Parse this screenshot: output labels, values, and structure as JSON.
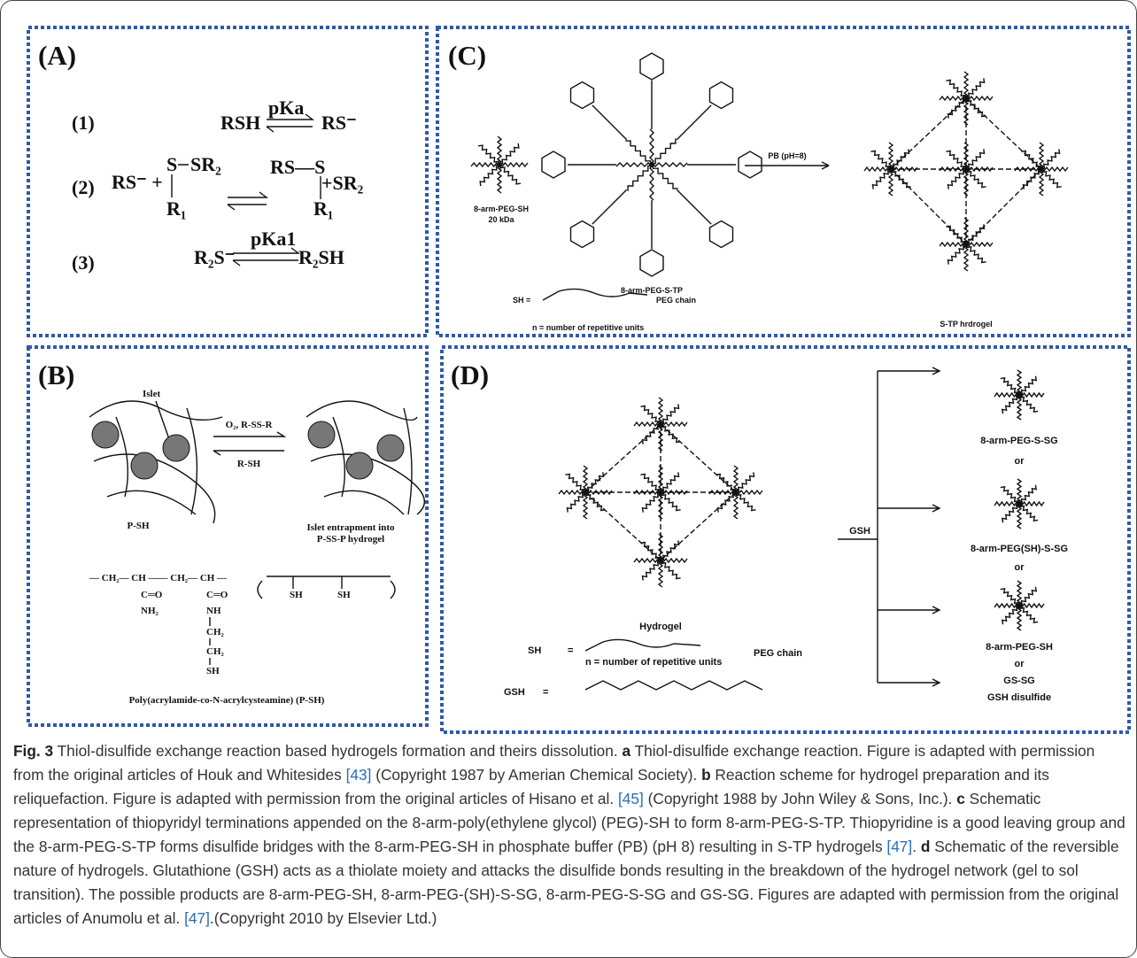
{
  "panel_a": {
    "label": "(A)",
    "r1": {
      "number": "(1)",
      "left": "RSH",
      "constant": "pKa",
      "right": "RS⁻"
    },
    "r2": {
      "number": "(2)",
      "left": "RS⁻ +",
      "s": "S",
      "sr2": "SR₂",
      "r1": "R₁",
      "product": "RS—S",
      "leaving": "+SR₂",
      "r1b": "R₁"
    },
    "r3": {
      "number": "(3)",
      "left": "R₂S⁻",
      "constant": "pKa1",
      "right": "R₂SH"
    }
  },
  "panel_b": {
    "label": "(B)",
    "islet": "Islet",
    "forward": "O₂, R-SS-R",
    "reverse": "R-SH",
    "left_name": "P-SH",
    "right_name": [
      "Islet entrapment into",
      "P-SS-P hydrogel"
    ],
    "backbone": "— CH₂— CH —— CH₂— CH —",
    "side_a": [
      "C═O",
      "NH₂"
    ],
    "side_b": [
      "C═O",
      "NH",
      "CH₂",
      "CH₂",
      "SH"
    ],
    "repeat_sh": [
      "SH",
      "SH"
    ],
    "polymer_name": "Poly(acrylamide-co-N-acrylcysteamine) (P-SH)"
  },
  "panel_c": {
    "label": "(C)",
    "peg_sh": "8-arm-PEG-SH",
    "mass": "20 kDa",
    "peg_stp": "8-arm-PEG-S-TP",
    "condition": "PB (pH=8)",
    "hydrogel": "S-TP hrdrogel",
    "legend_sh": "SH =",
    "legend_chain": "PEG chain",
    "legend_n": "n = number of repetitive units"
  },
  "panel_d": {
    "label": "(D)",
    "hydrogel": "Hydrogel",
    "legend_sh": "SH",
    "equals": "=",
    "legend_chain": "PEG chain",
    "legend_n": "n = number of repetitive units",
    "gsh": "GSH",
    "gsh_eq": "=",
    "reagent": "GSH",
    "products": [
      "8-arm-PEG-S-SG",
      "or",
      "8-arm-PEG(SH)-S-SG",
      "or",
      "8-arm-PEG-SH",
      "or",
      "GS-SG",
      "GSH disulfide"
    ]
  },
  "caption": [
    "Fig. 3",
    " Thiol-disulfide exchange reaction based hydrogels formation and theirs dissolution. ",
    "a",
    " Thiol-disulfide exchange reaction. Figure is adapted with permission from the original articles of Houk and Whitesides ",
    "[43]",
    " (Copyright 1987 by Amerian Chemical Society). ",
    "b",
    " Reaction scheme for hydrogel preparation and its reliquefaction. Figure is adapted with permission from the original articles of Hisano et al. ",
    "[45]",
    " (Copyright 1988 by John Wiley & Sons, Inc.). ",
    "c",
    " Schematic representation of thiopyridyl terminations appended on the 8-arm-poly(ethylene glycol) (PEG)-SH to form 8-arm-PEG-S-TP. Thiopyridine is a good leaving group and the 8-arm-PEG-S-TP forms disulfide bridges with the 8-arm-PEG-SH in phosphate buffer (PB) (pH 8) resulting in S-TP hydrogels ",
    "[47]",
    ". ",
    "d",
    " Schematic of the reversible nature of hydrogels. Glutathione (GSH) acts as a thiolate moiety and attacks the disulfide bonds resulting in the breakdown of the hydrogel network (gel to sol transition). The possible products are 8-arm-PEG-SH, 8-arm-PEG-(SH)-S-SG, 8-arm-PEG-S-SG and GS-SG. Figures are adapted with permission from the original articles of Anumolu et al. ",
    "[47]",
    ".(Copyright 2010 by Elsevier Ltd.)"
  ]
}
